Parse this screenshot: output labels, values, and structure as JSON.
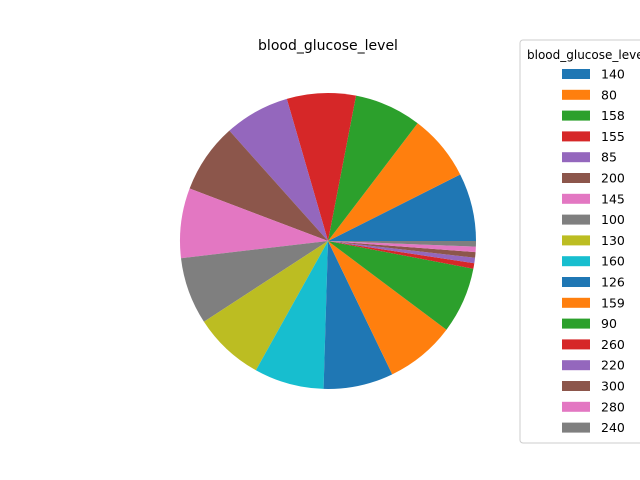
{
  "chart_data": {
    "type": "pie",
    "title": "blood_glucose_level",
    "legend": {
      "title": "blood_glucose_level",
      "placement": "right"
    },
    "slices": [
      {
        "label": "140",
        "value": 7.4,
        "color": "#1f77b4"
      },
      {
        "label": "80",
        "value": 7.2,
        "color": "#ff7f0e"
      },
      {
        "label": "158",
        "value": 7.3,
        "color": "#2ca02c"
      },
      {
        "label": "155",
        "value": 7.5,
        "color": "#d62728"
      },
      {
        "label": "85",
        "value": 7.1,
        "color": "#9467bd"
      },
      {
        "label": "200",
        "value": 7.6,
        "color": "#8c564b"
      },
      {
        "label": "145",
        "value": 7.6,
        "color": "#e377c2"
      },
      {
        "label": "100",
        "value": 7.3,
        "color": "#7f7f7f"
      },
      {
        "label": "130",
        "value": 7.7,
        "color": "#bcbd22"
      },
      {
        "label": "160",
        "value": 7.6,
        "color": "#17becf"
      },
      {
        "label": "126",
        "value": 7.6,
        "color": "#1f77b4"
      },
      {
        "label": "159",
        "value": 7.6,
        "color": "#ff7f0e"
      },
      {
        "label": "90",
        "value": 7.2,
        "color": "#2ca02c"
      },
      {
        "label": "260",
        "value": 0.6,
        "color": "#d62728"
      },
      {
        "label": "220",
        "value": 0.6,
        "color": "#9467bd"
      },
      {
        "label": "300",
        "value": 0.6,
        "color": "#8c564b"
      },
      {
        "label": "280",
        "value": 0.6,
        "color": "#e377c2"
      },
      {
        "label": "240",
        "value": 0.6,
        "color": "#7f7f7f"
      }
    ]
  }
}
